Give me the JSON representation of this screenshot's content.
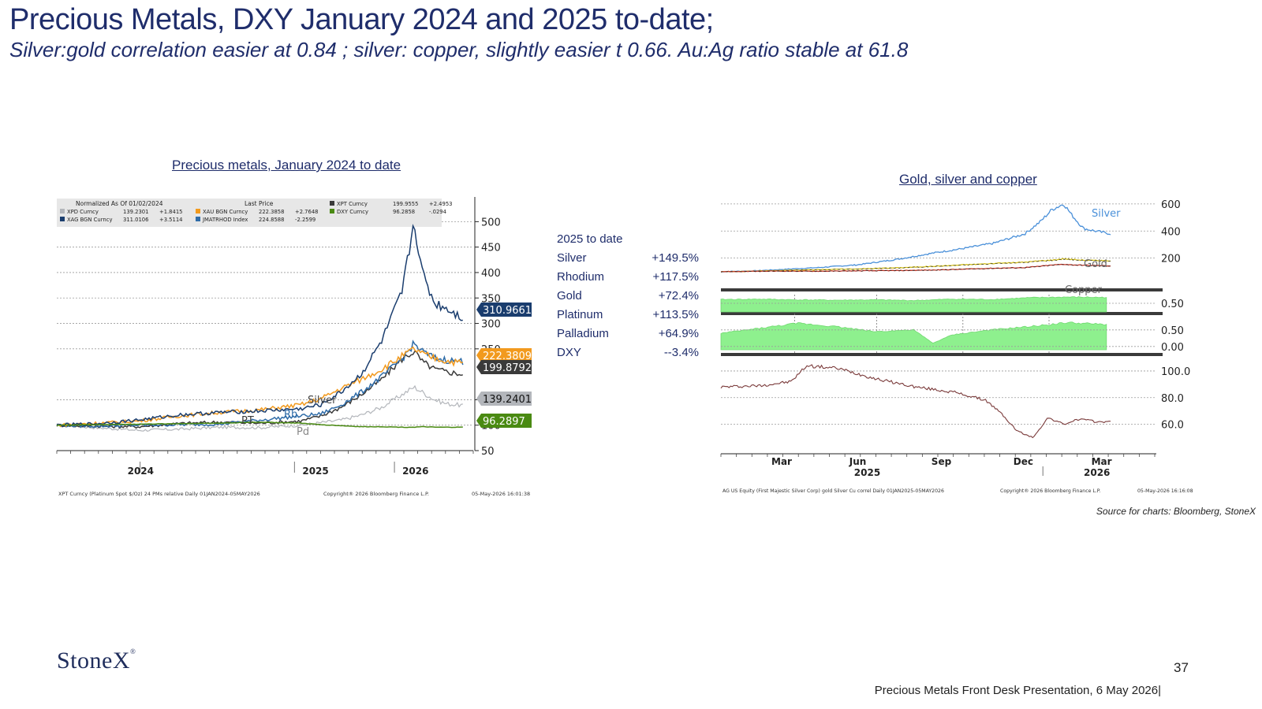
{
  "slide": {
    "title": "Precious Metals, DXY January 2024 and 2025 to-date;",
    "subtitle": "Silver:gold correlation easier at 0.84 ; silver: copper, slightly easier t 0.66.  Au:Ag ratio stable at 61.8",
    "left_chart_heading": "Precious metals, January 2024 to date",
    "right_chart_heading": "Gold, silver and copper",
    "source": "Source for charts: Bloomberg, StoneX",
    "logo_text": "StoneX",
    "logo_mark": "®",
    "page_number": "37",
    "footer": "Precious Metals Front Desk Presentation, 6 May 2026|"
  },
  "performance_table": {
    "header": "2025 to date",
    "rows": [
      {
        "name": "Silver",
        "value": "+149.5%"
      },
      {
        "name": "Rhodium",
        "value": "+117.5%"
      },
      {
        "name": "Gold",
        "value": "+72.4%"
      },
      {
        "name": "Platinum",
        "value": "+113.5%"
      },
      {
        "name": "Palladium",
        "value": "+64.9%"
      },
      {
        "name": "DXY",
        "value": "--3.4%"
      }
    ]
  },
  "colors": {
    "navy_text": "#1f2d6b",
    "silver_series": "#1a3d6e",
    "gold_series": "#f29a1e",
    "platinum_series": "#3a3a3a",
    "palladium_series": "#b3b6bb",
    "rhodium_series": "#2f6ca8",
    "dxy_series": "#4a8a12",
    "corr_fill": "#8ef08e",
    "ratio_line": "#7a3a3a"
  },
  "chart_data": [
    {
      "type": "line",
      "title": "",
      "legend": {
        "header_left": "Normalized As Of 01/02/2024",
        "header_right": "Last Price",
        "entries": [
          {
            "ticker": "XPD Curncy",
            "last": "139.2301",
            "chg": "+1.8415",
            "color": "#b3b6bb"
          },
          {
            "ticker": "XAG BGN Curncy",
            "last": "311.0106",
            "chg": "+3.5114",
            "color": "#1a3d6e"
          },
          {
            "ticker": "XAU BGN Curncy",
            "last": "222.3858",
            "chg": "+2.7648",
            "color": "#f29a1e"
          },
          {
            "ticker": "JMATRHOD Index",
            "last": "224.8588",
            "chg": "-2.2599",
            "color": "#2f6ca8"
          },
          {
            "ticker": "XPT Curncy",
            "last": "199.9555",
            "chg": "+2.4953",
            "color": "#3a3a3a"
          },
          {
            "ticker": "DXY Curncy",
            "last": "96.2858",
            "chg": "-.0294",
            "color": "#4a8a12"
          }
        ]
      },
      "x_tick_labels": [
        "2024",
        "2025",
        "2026"
      ],
      "y_tick_labels": [
        "500",
        "450",
        "400",
        "350",
        "300",
        "250",
        "150",
        "100",
        "50"
      ],
      "ylim": [
        50,
        530
      ],
      "inline_labels": [
        "Silver",
        "Rh",
        "Pd",
        "PT"
      ],
      "last_value_tags": [
        {
          "label": "310.9661",
          "value": 310.97,
          "color": "#1a3d6e"
        },
        {
          "label": "222.3809",
          "value": 222.38,
          "color": "#f29a1e"
        },
        {
          "label": "199.8792",
          "value": 199.88,
          "color": "#3a3a3a"
        },
        {
          "label": "139.2401",
          "value": 139.24,
          "color": "#b3b6bb"
        },
        {
          "label": "96.2897",
          "value": 96.29,
          "color": "#4a8a12"
        }
      ],
      "x": [
        0,
        0.1,
        0.2,
        0.3,
        0.4,
        0.5,
        0.6,
        0.65,
        0.7,
        0.75,
        0.8,
        0.85,
        0.88,
        0.9,
        0.93,
        0.96,
        1.0
      ],
      "series": [
        {
          "key": "palladium",
          "color": "#b3b6bb",
          "values": [
            100,
            95,
            90,
            92,
            96,
            95,
            100,
            105,
            110,
            120,
            135,
            160,
            175,
            165,
            150,
            142,
            139
          ]
        },
        {
          "key": "platinum",
          "color": "#3a3a3a",
          "values": [
            100,
            98,
            97,
            103,
            106,
            104,
            108,
            118,
            135,
            160,
            190,
            230,
            245,
            225,
            210,
            205,
            200
          ]
        },
        {
          "key": "rhodium",
          "color": "#2f6ca8",
          "values": [
            100,
            98,
            100,
            101,
            102,
            110,
            118,
            122,
            140,
            165,
            195,
            230,
            260,
            245,
            232,
            228,
            225
          ]
        },
        {
          "key": "gold",
          "color": "#f29a1e",
          "values": [
            100,
            104,
            108,
            118,
            125,
            130,
            140,
            152,
            172,
            190,
            210,
            235,
            250,
            240,
            232,
            226,
            222
          ]
        },
        {
          "key": "silver",
          "color": "#1a3d6e",
          "values": [
            100,
            103,
            110,
            120,
            125,
            128,
            132,
            140,
            165,
            200,
            265,
            360,
            500,
            400,
            340,
            330,
            311
          ]
        },
        {
          "key": "dxy",
          "color": "#4a8a12",
          "values": [
            100,
            101,
            102,
            103,
            104,
            106,
            104,
            101,
            99,
            97,
            97,
            96,
            96,
            97,
            96,
            96,
            96
          ]
        }
      ],
      "footer_left": "XPT Curncy (Platinum Spot $/Oz) 24 PMs relative Daily 01JAN2024-05MAY2026",
      "footer_center": "Copyright® 2026 Bloomberg Finance L.P.",
      "footer_right": "05-May-2026 16:01:38"
    },
    {
      "type": "line",
      "title": "",
      "x_tick_labels": [
        "Mar",
        "Jun",
        "Sep",
        "Dec",
        "Mar"
      ],
      "x_year_labels": [
        "2025",
        "2026"
      ],
      "panels": [
        {
          "name": "prices",
          "y_tick_labels": [
            "600",
            "400",
            "200"
          ],
          "ylim": [
            0,
            640
          ],
          "inline_labels": [
            "Silver",
            "Gold",
            "Copper"
          ],
          "x": [
            0,
            0.08,
            0.15,
            0.25,
            0.35,
            0.45,
            0.55,
            0.62,
            0.7,
            0.78,
            0.82,
            0.85,
            0.88,
            0.9,
            0.93,
            0.96,
            1.0
          ],
          "series": [
            {
              "key": "silver",
              "color": "#4a90d9",
              "values": [
                100,
                105,
                115,
                130,
                150,
                190,
                240,
                270,
                310,
                380,
                470,
                560,
                600,
                520,
                420,
                400,
                380
              ]
            },
            {
              "key": "gold",
              "color": "#d6c21a",
              "values": [
                100,
                103,
                108,
                115,
                120,
                128,
                140,
                150,
                160,
                170,
                180,
                185,
                195,
                190,
                185,
                182,
                180
              ]
            },
            {
              "key": "copper",
              "color": "#c0392b",
              "values": [
                100,
                102,
                104,
                103,
                106,
                108,
                112,
                118,
                125,
                130,
                140,
                148,
                155,
                150,
                148,
                145,
                143
              ]
            }
          ]
        },
        {
          "name": "silver-gold correlation",
          "y_tick_labels": [
            "0.50"
          ],
          "ylim": [
            0,
            1
          ],
          "x": [
            0,
            0.1,
            0.2,
            0.3,
            0.4,
            0.5,
            0.6,
            0.7,
            0.8,
            0.9,
            1.0
          ],
          "values": [
            0.72,
            0.74,
            0.7,
            0.68,
            0.7,
            0.66,
            0.74,
            0.72,
            0.82,
            0.86,
            0.84
          ]
        },
        {
          "name": "silver-copper correlation",
          "y_tick_labels": [
            "0.50",
            "0.00"
          ],
          "ylim": [
            -0.1,
            0.9
          ],
          "x": [
            0,
            0.1,
            0.2,
            0.3,
            0.4,
            0.5,
            0.55,
            0.6,
            0.7,
            0.8,
            0.9,
            1.0
          ],
          "values": [
            0.4,
            0.55,
            0.7,
            0.6,
            0.45,
            0.5,
            0.1,
            0.35,
            0.5,
            0.6,
            0.72,
            0.66
          ]
        },
        {
          "name": "gold-silver ratio",
          "y_tick_labels": [
            "100.0",
            "80.0",
            "60.0"
          ],
          "ylim": [
            45,
            110
          ],
          "x": [
            0,
            0.1,
            0.18,
            0.22,
            0.3,
            0.4,
            0.5,
            0.6,
            0.68,
            0.72,
            0.76,
            0.8,
            0.84,
            0.88,
            0.92,
            0.96,
            1.0
          ],
          "values": [
            88,
            89,
            92,
            104,
            102,
            94,
            88,
            84,
            78,
            68,
            55,
            50,
            65,
            60,
            64,
            62,
            61.8
          ]
        }
      ],
      "footer_left": "AG US Equity (First Majestic Silver Corp) gold Silver Cu correl Daily 01JAN2025-05MAY2026",
      "footer_center": "Copyright® 2026 Bloomberg Finance L.P.",
      "footer_right": "05-May-2026 16:16:08"
    }
  ]
}
